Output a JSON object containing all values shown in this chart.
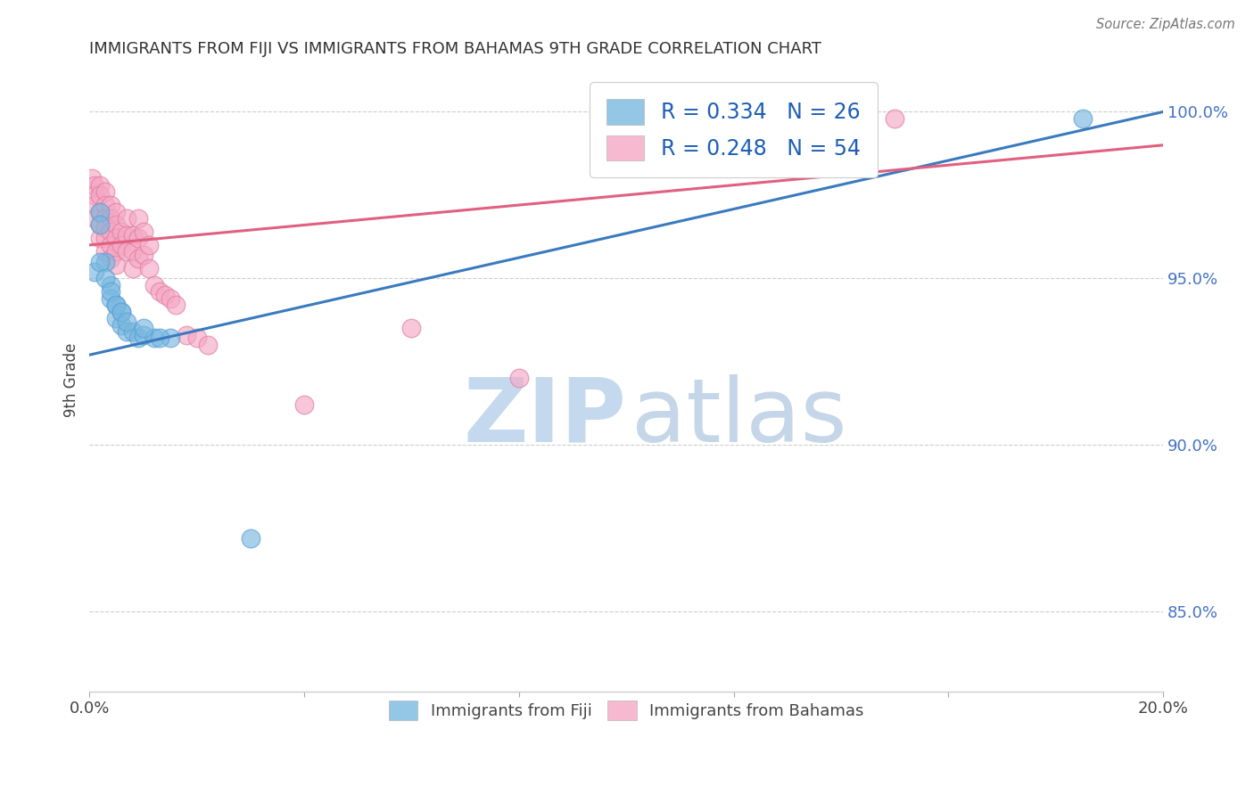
{
  "title": "IMMIGRANTS FROM FIJI VS IMMIGRANTS FROM BAHAMAS 9TH GRADE CORRELATION CHART",
  "source": "Source: ZipAtlas.com",
  "ylabel": "9th Grade",
  "x_min": 0.0,
  "x_max": 0.2,
  "y_min": 0.826,
  "y_max": 1.013,
  "fiji_color": "#7ab8e0",
  "fiji_edge_color": "#5a9fd4",
  "bahamas_color": "#f5a8c5",
  "bahamas_edge_color": "#e080a0",
  "fiji_R": 0.334,
  "fiji_N": 26,
  "bahamas_R": 0.248,
  "bahamas_N": 54,
  "fiji_scatter_x": [
    0.001,
    0.002,
    0.002,
    0.003,
    0.004,
    0.004,
    0.005,
    0.005,
    0.006,
    0.006,
    0.007,
    0.008,
    0.009,
    0.01,
    0.012,
    0.015,
    0.002,
    0.003,
    0.004,
    0.005,
    0.006,
    0.007,
    0.01,
    0.013,
    0.03,
    0.185
  ],
  "fiji_scatter_y": [
    0.952,
    0.97,
    0.966,
    0.955,
    0.948,
    0.944,
    0.942,
    0.938,
    0.94,
    0.936,
    0.934,
    0.934,
    0.932,
    0.933,
    0.932,
    0.932,
    0.955,
    0.95,
    0.946,
    0.942,
    0.94,
    0.937,
    0.935,
    0.932,
    0.872,
    0.998
  ],
  "bahamas_scatter_x": [
    0.0005,
    0.001,
    0.001,
    0.001,
    0.001,
    0.002,
    0.002,
    0.002,
    0.002,
    0.002,
    0.003,
    0.003,
    0.003,
    0.003,
    0.003,
    0.003,
    0.004,
    0.004,
    0.004,
    0.004,
    0.004,
    0.005,
    0.005,
    0.005,
    0.005,
    0.005,
    0.006,
    0.006,
    0.007,
    0.007,
    0.007,
    0.008,
    0.008,
    0.008,
    0.009,
    0.009,
    0.009,
    0.01,
    0.01,
    0.011,
    0.011,
    0.012,
    0.013,
    0.014,
    0.015,
    0.016,
    0.018,
    0.02,
    0.022,
    0.04,
    0.06,
    0.08,
    0.12,
    0.15
  ],
  "bahamas_scatter_y": [
    0.98,
    0.978,
    0.975,
    0.972,
    0.968,
    0.978,
    0.975,
    0.97,
    0.966,
    0.962,
    0.976,
    0.972,
    0.968,
    0.965,
    0.962,
    0.958,
    0.972,
    0.968,
    0.964,
    0.96,
    0.956,
    0.97,
    0.966,
    0.962,
    0.958,
    0.954,
    0.964,
    0.96,
    0.968,
    0.963,
    0.958,
    0.963,
    0.958,
    0.953,
    0.968,
    0.962,
    0.956,
    0.964,
    0.957,
    0.96,
    0.953,
    0.948,
    0.946,
    0.945,
    0.944,
    0.942,
    0.933,
    0.932,
    0.93,
    0.912,
    0.935,
    0.92,
    0.985,
    0.998
  ],
  "fiji_line_x": [
    0.0,
    0.2
  ],
  "fiji_line_y": [
    0.927,
    1.0
  ],
  "bahamas_line_x": [
    0.0,
    0.2
  ],
  "bahamas_line_y": [
    0.96,
    0.99
  ],
  "fiji_line_color": "#3a7abf",
  "bahamas_line_color": "#e06080",
  "watermark_zip_color": "#c5d9ee",
  "watermark_atlas_color": "#b8cce4",
  "background_color": "#ffffff",
  "grid_color": "#c8c8c8",
  "title_color": "#333333",
  "ytick_color": "#4472c4",
  "legend_text_color": "#1e5fb5",
  "legend_border_color": "#cccccc"
}
